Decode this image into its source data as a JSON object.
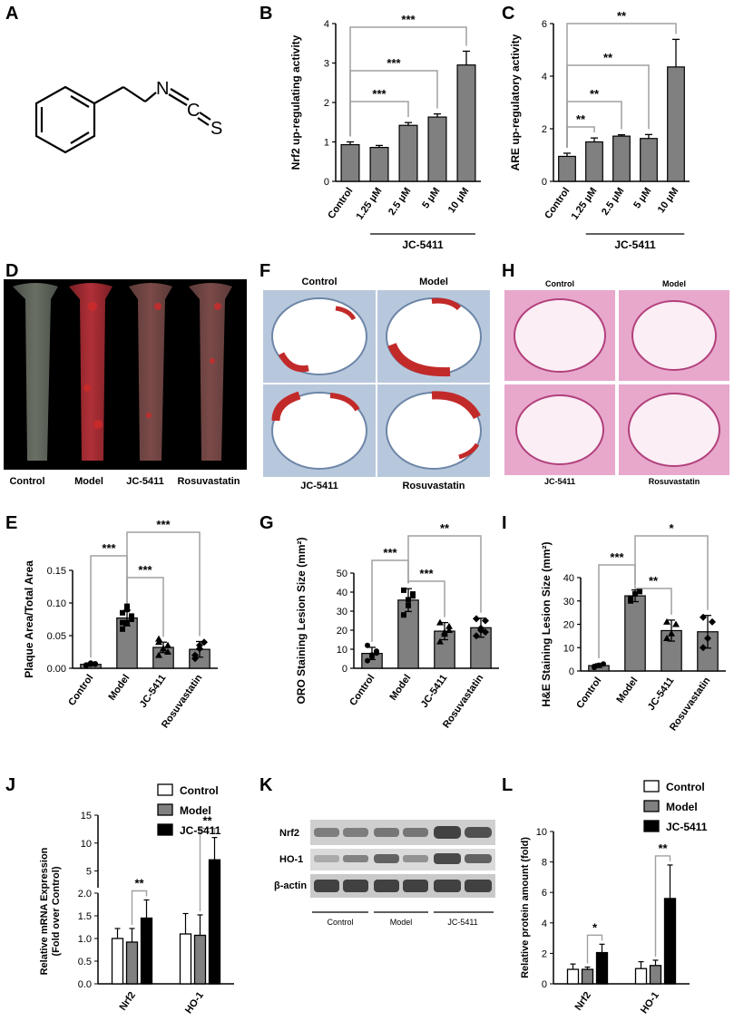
{
  "panel_labels": {
    "A": "A",
    "B": "B",
    "C": "C",
    "D": "D",
    "E": "E",
    "F": "F",
    "G": "G",
    "H": "H",
    "I": "I",
    "J": "J",
    "K": "K",
    "L": "L"
  },
  "molecule": {
    "atoms": [
      "N",
      "C",
      "S"
    ]
  },
  "chart_data": [
    {
      "id": "B",
      "type": "bar",
      "ylabel": "Nrf2 up-regulating activity",
      "ylim": [
        0,
        4
      ],
      "yticks": [
        "0",
        "1",
        "2",
        "3",
        "4"
      ],
      "categories": [
        "Control",
        "1.25 μM",
        "2.5 μM",
        "5 μM",
        "10 μM"
      ],
      "values": [
        0.93,
        0.86,
        1.42,
        1.63,
        2.95
      ],
      "errors": [
        0.07,
        0.05,
        0.07,
        0.08,
        0.35
      ],
      "group_label": "JC-5411",
      "sig": [
        "***",
        "***",
        "***"
      ]
    },
    {
      "id": "C",
      "type": "bar",
      "ylabel": "ARE up-regulatory activity",
      "ylim": [
        0,
        6
      ],
      "yticks": [
        "0",
        "2",
        "4",
        "6"
      ],
      "categories": [
        "Control",
        "1.25 μM",
        "2.5 μM",
        "5 μM",
        "10 μM"
      ],
      "values": [
        0.95,
        1.5,
        1.72,
        1.63,
        4.35
      ],
      "errors": [
        0.12,
        0.15,
        0.05,
        0.15,
        1.05
      ],
      "group_label": "JC-5411",
      "sig": [
        "**",
        "**",
        "**",
        "**"
      ]
    },
    {
      "id": "E",
      "type": "bar",
      "ylabel": "Plaque Area/Total Area",
      "ylim": [
        0,
        0.15
      ],
      "yticks": [
        "0.00",
        "0.05",
        "0.10",
        "0.15"
      ],
      "categories": [
        "Control",
        "Model",
        "JC-5411",
        "Rosuvastatin"
      ],
      "values": [
        0.006,
        0.077,
        0.032,
        0.029
      ],
      "errors": [
        0.002,
        0.012,
        0.008,
        0.012
      ],
      "sig": [
        "***",
        "***",
        "***"
      ]
    },
    {
      "id": "G",
      "type": "bar",
      "ylabel": "ORO Staining Lesion Size (mm²)",
      "ylim": [
        0,
        50
      ],
      "yticks": [
        "0",
        "10",
        "20",
        "30",
        "40",
        "50"
      ],
      "categories": [
        "Control",
        "Model",
        "JC-5411",
        "Rosuvastatin"
      ],
      "values": [
        7.8,
        35.8,
        19.5,
        21.3
      ],
      "errors": [
        3.2,
        6.0,
        4.5,
        5.0
      ],
      "sig": [
        "***",
        "***",
        "**"
      ]
    },
    {
      "id": "I",
      "type": "bar",
      "ylabel": "H&E Staining Lesion Size (mm²)",
      "ylim": [
        0,
        40
      ],
      "yticks": [
        "0",
        "10",
        "20",
        "30",
        "40"
      ],
      "categories": [
        "Control",
        "Model",
        "JC-5411",
        "Rosuvastatin"
      ],
      "values": [
        2.3,
        32.2,
        17.3,
        16.8
      ],
      "errors": [
        0.8,
        2.5,
        4.5,
        7.0
      ],
      "sig": [
        "***",
        "**",
        "*"
      ]
    },
    {
      "id": "J",
      "type": "bar",
      "ylabel": "Relative mRNA Expression",
      "ylabel2": "(Fold over Control)",
      "yticks_low": [
        "0.0",
        "0.5",
        "1.0",
        "1.5",
        "2.0"
      ],
      "yticks_high": [
        "5",
        "10",
        "15"
      ],
      "categories": [
        "Nrf2",
        "HO-1"
      ],
      "series": [
        {
          "name": "Control",
          "values": [
            1.0,
            1.1
          ],
          "errors": [
            0.22,
            0.45
          ]
        },
        {
          "name": "Model",
          "values": [
            0.92,
            1.07
          ],
          "errors": [
            0.3,
            0.45
          ]
        },
        {
          "name": "JC-5411",
          "values": [
            1.45,
            7.0
          ],
          "errors": [
            0.4,
            4.0
          ]
        }
      ],
      "sig": [
        "**",
        "**"
      ]
    },
    {
      "id": "L",
      "type": "bar",
      "ylabel": "Relative protein amount (fold)",
      "ylim": [
        0,
        10
      ],
      "yticks": [
        "0",
        "2",
        "4",
        "6",
        "8",
        "10"
      ],
      "categories": [
        "Nrf2",
        "HO-1"
      ],
      "series": [
        {
          "name": "Control",
          "values": [
            0.95,
            1.0
          ],
          "errors": [
            0.35,
            0.45
          ]
        },
        {
          "name": "Model",
          "values": [
            0.95,
            1.2
          ],
          "errors": [
            0.15,
            0.35
          ]
        },
        {
          "name": "JC-5411",
          "values": [
            2.05,
            5.6
          ],
          "errors": [
            0.55,
            2.2
          ]
        }
      ],
      "sig": [
        "*",
        "**"
      ]
    }
  ],
  "panel_D": {
    "captions": [
      "Control",
      "Model",
      "JC-5411",
      "Rosuvastatin"
    ]
  },
  "panel_F": {
    "captions": [
      "Control",
      "Model",
      "JC-5411",
      "Rosuvastatin"
    ]
  },
  "panel_H": {
    "captions": [
      "Control",
      "Model",
      "JC-5411",
      "Rosuvastatin"
    ]
  },
  "panel_K": {
    "rows": [
      "Nrf2",
      "HO-1",
      "β-actin"
    ],
    "groups": [
      "Control",
      "Model",
      "JC-5411"
    ]
  },
  "colors": {
    "bar_grey": "#808080",
    "sig_line": "#a0a0a0",
    "jc_black": "#000000"
  }
}
